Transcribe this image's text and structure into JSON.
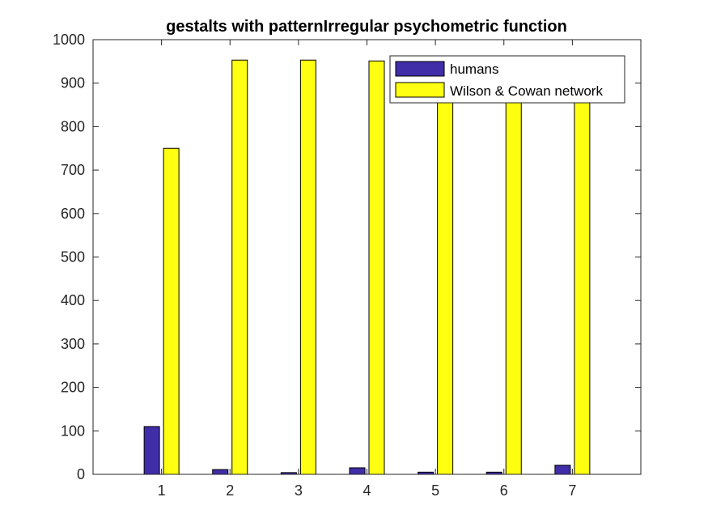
{
  "chart_data": {
    "type": "bar",
    "title": "gestalts with patternIrregular psychometric function",
    "xlabel": "",
    "ylabel": "",
    "categories": [
      "1",
      "2",
      "3",
      "4",
      "5",
      "6",
      "7"
    ],
    "ylim": [
      0,
      1000
    ],
    "yticks": [
      0,
      100,
      200,
      300,
      400,
      500,
      600,
      700,
      800,
      900,
      1000
    ],
    "grid": false,
    "legend_position": "top-right",
    "series": [
      {
        "name": "humans",
        "color": "#3f2ea8",
        "values": [
          110,
          11,
          4,
          15,
          5,
          5,
          21
        ]
      },
      {
        "name": "Wilson & Cowan network",
        "color": "#ffff11",
        "values": [
          750,
          953,
          953,
          951,
          950,
          950,
          950
        ]
      }
    ]
  }
}
